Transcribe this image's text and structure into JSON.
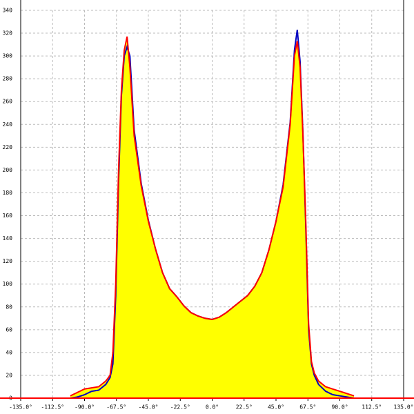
{
  "chart_data": {
    "type": "line",
    "x": [
      -100,
      -95,
      -90,
      -85,
      -80,
      -75,
      -72,
      -70,
      -68,
      -66,
      -64,
      -62,
      -60,
      -58,
      -55,
      -50,
      -45,
      -40,
      -35,
      -30,
      -25,
      -20,
      -15,
      -10,
      -5,
      0,
      5,
      10,
      15,
      20,
      25,
      30,
      35,
      40,
      45,
      50,
      55,
      58,
      60,
      62,
      64,
      66,
      68,
      70,
      72,
      75,
      80,
      85,
      90,
      95,
      100
    ],
    "series": [
      {
        "name": "Blue",
        "color": "#0000c0",
        "values": [
          0,
          1,
          3,
          6,
          7,
          12,
          18,
          30,
          90,
          190,
          265,
          300,
          308,
          300,
          235,
          188,
          156,
          131,
          110,
          96,
          89,
          81,
          75,
          72,
          70,
          69,
          71,
          75,
          80,
          85,
          90,
          98,
          110,
          130,
          155,
          187,
          242,
          305,
          323,
          295,
          232,
          150,
          60,
          30,
          20,
          12,
          6,
          3,
          2,
          1,
          0
        ]
      },
      {
        "name": "Red",
        "color": "#ff0000",
        "values": [
          2,
          5,
          8,
          9,
          10,
          15,
          20,
          40,
          100,
          200,
          270,
          305,
          317,
          290,
          230,
          186,
          155,
          131,
          110,
          96,
          89,
          81,
          75,
          72,
          70,
          69,
          71,
          75,
          80,
          85,
          90,
          98,
          110,
          130,
          155,
          185,
          240,
          300,
          313,
          290,
          230,
          155,
          65,
          32,
          22,
          15,
          10,
          8,
          6,
          4,
          2
        ]
      }
    ],
    "fill": "#ffff00",
    "xlim": [
      -135,
      135
    ],
    "ylim": [
      0,
      340
    ],
    "xticks": [
      {
        "value": -135,
        "label": "-135.0°"
      },
      {
        "value": -112.5,
        "label": "-112.5°"
      },
      {
        "value": -90,
        "label": "-90.0°"
      },
      {
        "value": -67.5,
        "label": "-67.5°"
      },
      {
        "value": -45,
        "label": "-45.0°"
      },
      {
        "value": -22.5,
        "label": "-22.5°"
      },
      {
        "value": 0,
        "label": "0.0°"
      },
      {
        "value": 22.5,
        "label": "22.5°"
      },
      {
        "value": 45,
        "label": "45.0°"
      },
      {
        "value": 67.5,
        "label": "67.5°"
      },
      {
        "value": 90,
        "label": "90.0°"
      },
      {
        "value": 112.5,
        "label": "112.5°"
      },
      {
        "value": 135,
        "label": "135.0°"
      }
    ],
    "yticks": [
      0,
      20,
      40,
      60,
      80,
      100,
      120,
      140,
      160,
      180,
      200,
      220,
      240,
      260,
      280,
      300,
      320,
      340
    ],
    "grid": true
  }
}
